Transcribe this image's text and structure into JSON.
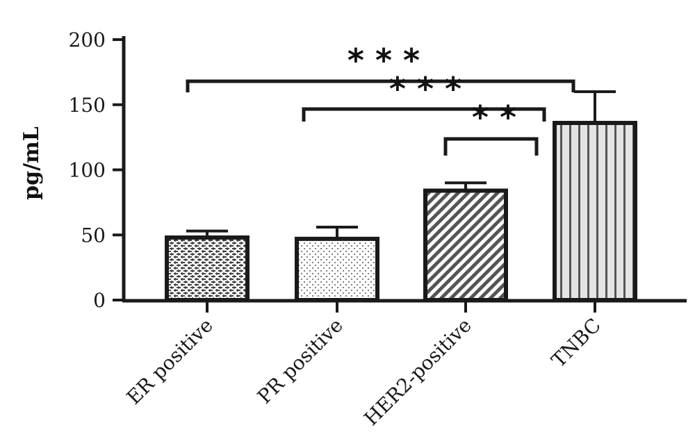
{
  "chart_data": {
    "type": "bar",
    "title": "",
    "xlabel": "",
    "ylabel": "pg/mL",
    "ylim": [
      0,
      200
    ],
    "yticks": [
      0,
      50,
      100,
      150,
      200
    ],
    "categories": [
      "ER positive",
      "PR positive",
      "HER2-positive",
      "TNBC"
    ],
    "values": [
      48,
      47,
      84,
      136
    ],
    "error_upper": [
      53,
      56,
      90,
      160
    ],
    "patterns": [
      "brick",
      "dots",
      "diagonal",
      "vertical"
    ],
    "grid": false,
    "significance": [
      {
        "from": 0,
        "to": 3,
        "label": "* * *",
        "level": 167
      },
      {
        "from": 1,
        "to": 2,
        "label": "* * *",
        "level": 146
      },
      {
        "from": 2,
        "to": 2,
        "label": "* *",
        "level": 124
      }
    ]
  },
  "colors": {
    "axis": "#1a1a1a",
    "bar_stroke": "#1a1a1a",
    "dots": "#555555",
    "diagonal": "#555555",
    "vertical": "#555555",
    "brick": "#444444"
  }
}
